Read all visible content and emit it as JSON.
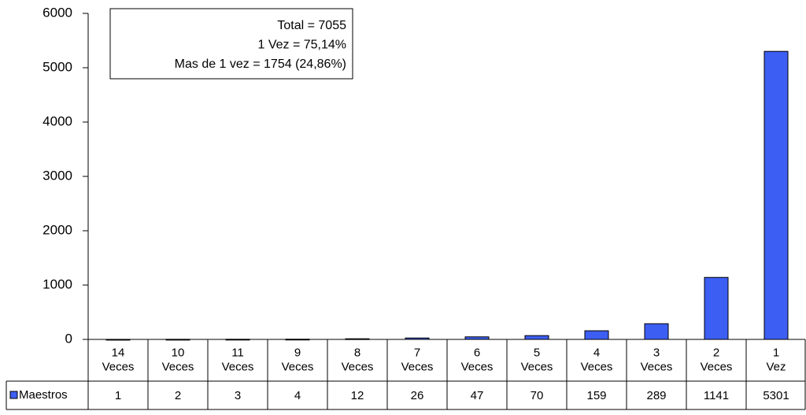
{
  "chart_data": {
    "type": "bar",
    "annotations": [
      "Total = 7055",
      "1 Vez = 75,14%",
      "Mas de 1 vez = 1754 (24,86%)"
    ],
    "categories": [
      "14 Veces",
      "10 Veces",
      "11 Veces",
      "9 Veces",
      "8 Veces",
      "7 Veces",
      "6 Veces",
      "5 Veces",
      "4 Veces",
      "3 Veces",
      "2 Veces",
      "1 Vez"
    ],
    "series": [
      {
        "name": "Maestros",
        "color": "#3d5ef2",
        "values": [
          1,
          2,
          3,
          4,
          12,
          26,
          47,
          70,
          159,
          289,
          1141,
          5301
        ]
      }
    ],
    "ylim": [
      0,
      6000
    ],
    "yticks": [
      0,
      1000,
      2000,
      3000,
      4000,
      5000,
      6000
    ]
  }
}
